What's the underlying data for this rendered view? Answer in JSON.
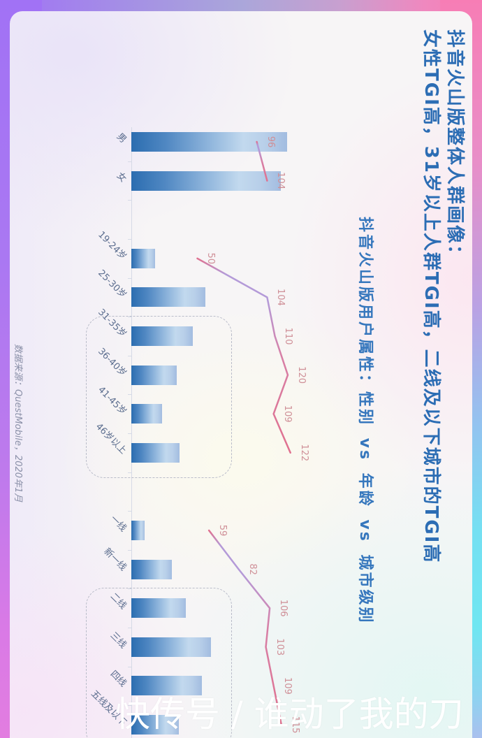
{
  "header": {
    "title_line1": "抖音火山版整体人群画像：",
    "title_line2": "女性TGI高，31岁以上人群TGI高，二线及以下城市的TGI高"
  },
  "chart": {
    "subtitle": "抖音火山版用户属性：性别 vs 年龄 vs 城市级别"
  },
  "footer": {
    "source": "数据来源：QuestMobile，2020年1月"
  },
  "watermark": {
    "text": "快传号 / 谁动了我的刀"
  },
  "colors": {
    "title": "#2c6db4",
    "subtitle": "#3677bd",
    "bar_dark": "#2b6db0",
    "bar_light": "#c2d9ee",
    "tgi_line": "#e0718f",
    "tgi_line_accent": "#b49ad8",
    "tgi_label": "#cf8f97",
    "category_label": "#5b6d8e",
    "axis": "#d6dae6",
    "source": "#8a90a8",
    "highlight_box_border": "#b9bcc9",
    "watermark": "#ffffff"
  },
  "chart_data": {
    "type": "bar",
    "orientation": "rotated-90-cw",
    "title": "抖音火山版用户属性：性别 vs 年龄 vs 城市级别",
    "xlabel": "",
    "ylabel": "",
    "grid": false,
    "legend": "none",
    "categories": [
      "男",
      "女",
      "19-24岁",
      "25-30岁",
      "31-35岁",
      "36-40岁",
      "41-45岁",
      "46岁以上",
      "一线",
      "新一线",
      "二线",
      "三线",
      "四线",
      "五线及以下"
    ],
    "groups": [
      {
        "name": "性别",
        "categories": [
          "男",
          "女"
        ]
      },
      {
        "name": "年龄",
        "categories": [
          "19-24岁",
          "25-30岁",
          "31-35岁",
          "36-40岁",
          "41-45岁",
          "46岁以上"
        ]
      },
      {
        "name": "城市级别",
        "categories": [
          "一线",
          "新一线",
          "二线",
          "三线",
          "四线",
          "五线及以下"
        ]
      }
    ],
    "series": [
      {
        "name": "bar (unlabeled, est. %)",
        "type": "bar",
        "values": [
          51.0,
          49.0,
          7.8,
          24.3,
          20.1,
          14.9,
          10.1,
          15.8,
          4.3,
          13.3,
          17.8,
          26.1,
          23.1,
          15.6
        ]
      },
      {
        "name": "TGI",
        "type": "line",
        "values": [
          96,
          104,
          50,
          104,
          110,
          120,
          109,
          122,
          59,
          82,
          106,
          103,
          109,
          115
        ]
      }
    ],
    "highlight_boxes": [
      {
        "group": "年龄",
        "categories": [
          "31-35岁",
          "36-40岁",
          "41-45岁",
          "46岁以上"
        ]
      },
      {
        "group": "城市级别",
        "categories": [
          "二线",
          "三线",
          "四线",
          "五线及以下"
        ]
      }
    ]
  }
}
